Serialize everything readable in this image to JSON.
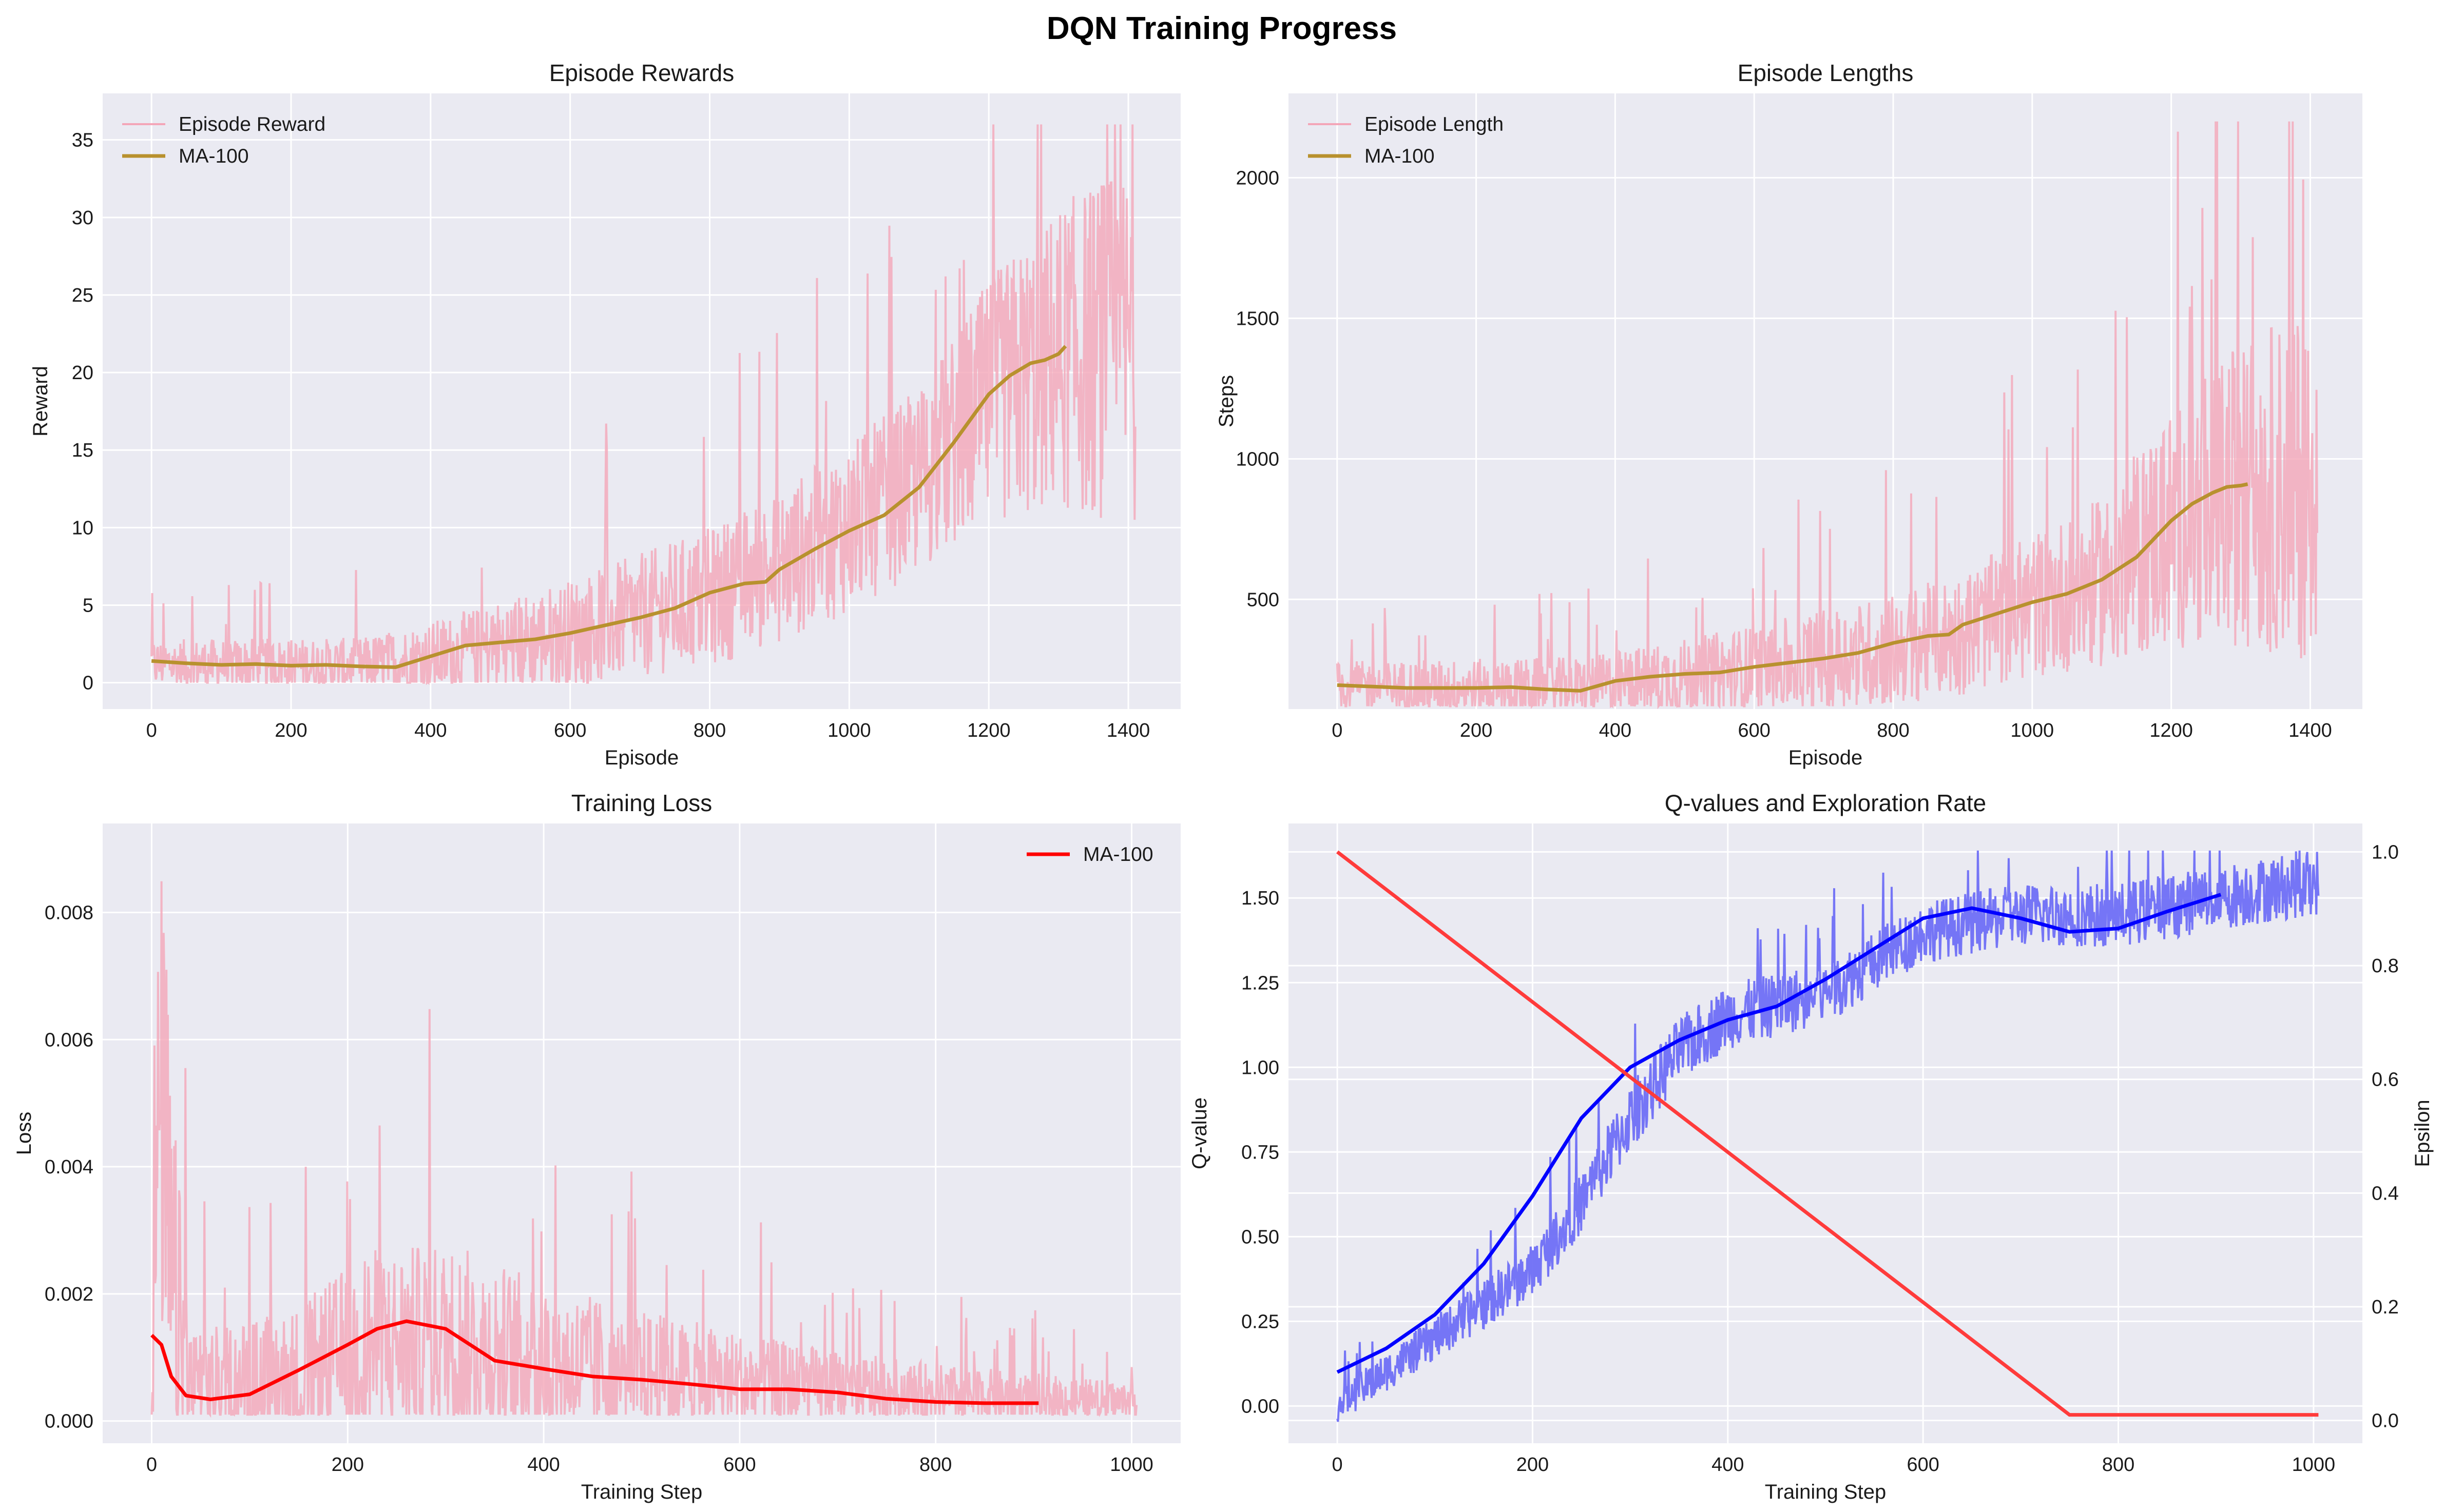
{
  "figure_title": "DQN Training Progress",
  "colors": {
    "raw_pink": "#f4a6b8",
    "ma_gold": "#b8912e",
    "loss_ma": "#ff0000",
    "q_blue": "#0000ff",
    "q_raw": "#6f6ff5",
    "eps_red": "#ff3b3b",
    "panel_bg": "#eaeaf2"
  },
  "chart_data": [
    {
      "id": "rewards",
      "type": "line",
      "title": "Episode Rewards",
      "xlabel": "Episode",
      "ylabel": "Reward",
      "xlim": [
        -70,
        1475
      ],
      "ylim": [
        -1.7,
        38
      ],
      "xticks": [
        0,
        200,
        400,
        600,
        800,
        1000,
        1200,
        1400
      ],
      "yticks": [
        0,
        5,
        10,
        15,
        20,
        25,
        30,
        35
      ],
      "legend": {
        "placement": "top-left",
        "entries": [
          "Episode Reward",
          "MA-100"
        ]
      },
      "series": [
        {
          "name": "Episode Reward",
          "style": "raw",
          "x_range": [
            0,
            1410
          ],
          "trend": [
            [
              0,
              1.2
            ],
            [
              300,
              1.1
            ],
            [
              400,
              1.6
            ],
            [
              600,
              3.2
            ],
            [
              800,
              5.5
            ],
            [
              900,
              7.5
            ],
            [
              1000,
              10
            ],
            [
              1100,
              13
            ],
            [
              1200,
              18
            ],
            [
              1300,
              21
            ],
            [
              1410,
              22
            ]
          ],
          "spread": [
            [
              0,
              1.6
            ],
            [
              300,
              1.8
            ],
            [
              600,
              3.5
            ],
            [
              900,
              5
            ],
            [
              1100,
              6
            ],
            [
              1250,
              9
            ],
            [
              1410,
              12
            ]
          ],
          "min": 0,
          "max": 36
        },
        {
          "name": "MA-100",
          "style": "ma",
          "points": [
            [
              0,
              1.4
            ],
            [
              50,
              1.25
            ],
            [
              100,
              1.15
            ],
            [
              150,
              1.2
            ],
            [
              200,
              1.1
            ],
            [
              250,
              1.15
            ],
            [
              300,
              1.05
            ],
            [
              350,
              1.0
            ],
            [
              400,
              1.7
            ],
            [
              450,
              2.4
            ],
            [
              500,
              2.6
            ],
            [
              550,
              2.8
            ],
            [
              600,
              3.2
            ],
            [
              650,
              3.7
            ],
            [
              700,
              4.2
            ],
            [
              750,
              4.8
            ],
            [
              800,
              5.8
            ],
            [
              850,
              6.4
            ],
            [
              880,
              6.5
            ],
            [
              900,
              7.3
            ],
            [
              950,
              8.6
            ],
            [
              1000,
              9.8
            ],
            [
              1050,
              10.8
            ],
            [
              1100,
              12.6
            ],
            [
              1150,
              15.5
            ],
            [
              1200,
              18.6
            ],
            [
              1230,
              19.8
            ],
            [
              1260,
              20.6
            ],
            [
              1280,
              20.8
            ],
            [
              1300,
              21.2
            ],
            [
              1310,
              21.7
            ]
          ]
        }
      ]
    },
    {
      "id": "lengths",
      "type": "line",
      "title": "Episode Lengths",
      "xlabel": "Episode",
      "ylabel": "Steps",
      "xlim": [
        -70,
        1475
      ],
      "ylim": [
        110,
        2300
      ],
      "xticks": [
        0,
        200,
        400,
        600,
        800,
        1000,
        1200,
        1400
      ],
      "yticks": [
        500,
        1000,
        1500,
        2000
      ],
      "legend": {
        "placement": "top-left",
        "entries": [
          "Episode Length",
          "MA-100"
        ]
      },
      "series": [
        {
          "name": "Episode Length",
          "style": "raw",
          "x_range": [
            0,
            1410
          ],
          "trend": [
            [
              0,
              190
            ],
            [
              350,
              185
            ],
            [
              450,
              210
            ],
            [
              600,
              250
            ],
            [
              800,
              320
            ],
            [
              900,
              380
            ],
            [
              1000,
              480
            ],
            [
              1100,
              560
            ],
            [
              1200,
              760
            ],
            [
              1300,
              880
            ],
            [
              1410,
              920
            ]
          ],
          "spread": [
            [
              0,
              90
            ],
            [
              350,
              110
            ],
            [
              600,
              160
            ],
            [
              900,
              220
            ],
            [
              1100,
              300
            ],
            [
              1250,
              500
            ],
            [
              1410,
              650
            ]
          ],
          "min": 120,
          "max": 2200
        },
        {
          "name": "MA-100",
          "style": "ma",
          "points": [
            [
              0,
              195
            ],
            [
              100,
              185
            ],
            [
              200,
              185
            ],
            [
              250,
              188
            ],
            [
              300,
              180
            ],
            [
              350,
              175
            ],
            [
              400,
              210
            ],
            [
              450,
              225
            ],
            [
              500,
              235
            ],
            [
              550,
              240
            ],
            [
              600,
              260
            ],
            [
              650,
              275
            ],
            [
              700,
              290
            ],
            [
              750,
              310
            ],
            [
              800,
              345
            ],
            [
              850,
              370
            ],
            [
              880,
              375
            ],
            [
              900,
              410
            ],
            [
              950,
              450
            ],
            [
              1000,
              490
            ],
            [
              1050,
              520
            ],
            [
              1100,
              570
            ],
            [
              1150,
              650
            ],
            [
              1200,
              780
            ],
            [
              1230,
              840
            ],
            [
              1260,
              880
            ],
            [
              1280,
              900
            ],
            [
              1300,
              905
            ],
            [
              1310,
              910
            ]
          ]
        }
      ]
    },
    {
      "id": "loss",
      "type": "line",
      "title": "Training Loss",
      "xlabel": "Training Step",
      "ylabel": "Loss",
      "xlim": [
        -50,
        1050
      ],
      "ylim": [
        -0.00035,
        0.0094
      ],
      "xticks": [
        0,
        200,
        400,
        600,
        800,
        1000
      ],
      "yticks": [
        0.0,
        0.002,
        0.004,
        0.006,
        0.008
      ],
      "yticks_text": [
        "0.000",
        "0.002",
        "0.004",
        "0.006",
        "0.008"
      ],
      "legend": {
        "placement": "top-right",
        "entries": [
          "MA-100"
        ]
      },
      "series": [
        {
          "name": "Loss",
          "style": "raw",
          "x_range": [
            0,
            1005
          ],
          "trend": [
            [
              0,
              0.0025
            ],
            [
              10,
              0.005
            ],
            [
              20,
              0.002
            ],
            [
              40,
              0.0006
            ],
            [
              150,
              0.0006
            ],
            [
              220,
              0.0012
            ],
            [
              300,
              0.0013
            ],
            [
              400,
              0.0009
            ],
            [
              600,
              0.0006
            ],
            [
              800,
              0.0004
            ],
            [
              1005,
              0.0003
            ]
          ],
          "spread": [
            [
              0,
              0.003
            ],
            [
              15,
              0.004
            ],
            [
              40,
              0.0008
            ],
            [
              220,
              0.0015
            ],
            [
              330,
              0.0015
            ],
            [
              500,
              0.001
            ],
            [
              700,
              0.0006
            ],
            [
              1005,
              0.0003
            ]
          ],
          "min": 0.0001,
          "max": 0.009
        },
        {
          "name": "MA-100",
          "style": "ma",
          "points": [
            [
              0,
              0.00135
            ],
            [
              10,
              0.0012
            ],
            [
              20,
              0.0007
            ],
            [
              35,
              0.0004
            ],
            [
              60,
              0.00034
            ],
            [
              100,
              0.00042
            ],
            [
              150,
              0.0008
            ],
            [
              200,
              0.0012
            ],
            [
              230,
              0.00145
            ],
            [
              260,
              0.00157
            ],
            [
              300,
              0.00145
            ],
            [
              350,
              0.00095
            ],
            [
              400,
              0.00082
            ],
            [
              450,
              0.0007
            ],
            [
              500,
              0.00065
            ],
            [
              550,
              0.00058
            ],
            [
              600,
              0.0005
            ],
            [
              650,
              0.0005
            ],
            [
              700,
              0.00045
            ],
            [
              750,
              0.00035
            ],
            [
              800,
              0.0003
            ],
            [
              850,
              0.00028
            ],
            [
              905,
              0.00028
            ]
          ]
        }
      ]
    },
    {
      "id": "q_epsilon",
      "type": "line",
      "title": "Q-values and Exploration Rate",
      "xlabel": "Training Step",
      "ylabel": "Q-value",
      "ylabel_right": "Epsilon",
      "xlim": [
        -50,
        1050
      ],
      "ylim": [
        -0.11,
        1.72
      ],
      "ylim_right": [
        -0.04,
        1.05
      ],
      "xticks": [
        0,
        200,
        400,
        600,
        800,
        1000
      ],
      "yticks": [
        0.0,
        0.25,
        0.5,
        0.75,
        1.0,
        1.25,
        1.5
      ],
      "yticks_text": [
        "0.00",
        "0.25",
        "0.50",
        "0.75",
        "1.00",
        "1.25",
        "1.50"
      ],
      "yticks_right": [
        0.0,
        0.2,
        0.4,
        0.6,
        0.8,
        1.0
      ],
      "yticks_right_text": [
        "0.0",
        "0.2",
        "0.4",
        "0.6",
        "0.8",
        "1.0"
      ],
      "series": [
        {
          "name": "Q-value",
          "style": "raw",
          "x_range": [
            0,
            1005
          ],
          "trend": [
            [
              0,
              0.0
            ],
            [
              100,
              0.2
            ],
            [
              200,
              0.4
            ],
            [
              250,
              0.6
            ],
            [
              300,
              0.85
            ],
            [
              350,
              1.05
            ],
            [
              400,
              1.15
            ],
            [
              500,
              1.22
            ],
            [
              600,
              1.4
            ],
            [
              700,
              1.45
            ],
            [
              800,
              1.45
            ],
            [
              900,
              1.5
            ],
            [
              1005,
              1.55
            ]
          ],
          "spread": [
            [
              0,
              0.05
            ],
            [
              200,
              0.08
            ],
            [
              300,
              0.1
            ],
            [
              600,
              0.09
            ],
            [
              1005,
              0.1
            ]
          ],
          "min": -0.06,
          "max": 1.64
        },
        {
          "name": "MA-100",
          "style": "ma",
          "points": [
            [
              0,
              0.1
            ],
            [
              50,
              0.17
            ],
            [
              100,
              0.27
            ],
            [
              150,
              0.42
            ],
            [
              200,
              0.62
            ],
            [
              250,
              0.85
            ],
            [
              300,
              1.0
            ],
            [
              350,
              1.08
            ],
            [
              400,
              1.14
            ],
            [
              450,
              1.18
            ],
            [
              500,
              1.26
            ],
            [
              550,
              1.35
            ],
            [
              600,
              1.44
            ],
            [
              650,
              1.47
            ],
            [
              700,
              1.44
            ],
            [
              750,
              1.4
            ],
            [
              800,
              1.41
            ],
            [
              850,
              1.46
            ],
            [
              905,
              1.51
            ]
          ]
        },
        {
          "name": "Epsilon",
          "style": "epsilon",
          "axis": "right",
          "points": [
            [
              0,
              1.0
            ],
            [
              750,
              0.01
            ],
            [
              1005,
              0.01
            ]
          ]
        }
      ]
    }
  ]
}
